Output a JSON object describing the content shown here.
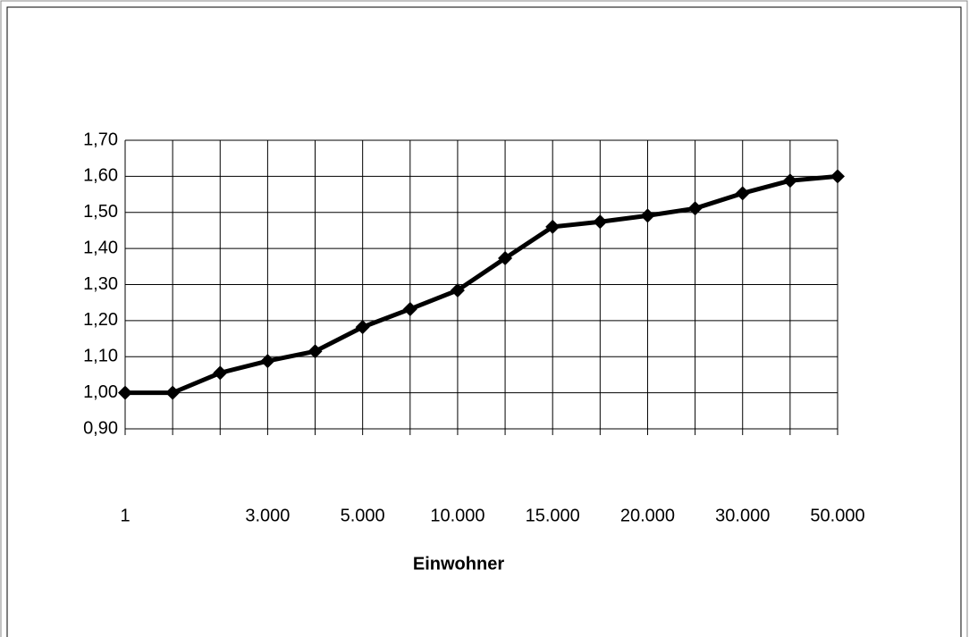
{
  "chart_data": {
    "type": "line",
    "x_label": "Einwohner",
    "categories": [
      "1",
      null,
      null,
      "3.000",
      null,
      "5.000",
      null,
      "10.000",
      null,
      "15.000",
      null,
      "20.000",
      null,
      "30.000",
      null,
      "50.000"
    ],
    "series": [
      {
        "color": "#000000",
        "values": [
          1.0,
          1.0,
          1.055,
          1.088,
          1.115,
          1.182,
          1.232,
          1.284,
          1.373,
          1.46,
          1.474,
          1.491,
          1.511,
          1.553,
          1.588,
          1.6
        ]
      }
    ],
    "ylim": [
      0.9,
      1.7
    ],
    "yticks": [
      {
        "value": 0.9,
        "label": "0,90"
      },
      {
        "value": 1.0,
        "label": "1,00"
      },
      {
        "value": 1.1,
        "label": "1,10"
      },
      {
        "value": 1.2,
        "label": "1,20"
      },
      {
        "value": 1.3,
        "label": "1,30"
      },
      {
        "value": 1.4,
        "label": "1,40"
      },
      {
        "value": 1.5,
        "label": "1,50"
      },
      {
        "value": 1.6,
        "label": "1,60"
      },
      {
        "value": 1.7,
        "label": "1,70"
      }
    ],
    "grid": true
  }
}
